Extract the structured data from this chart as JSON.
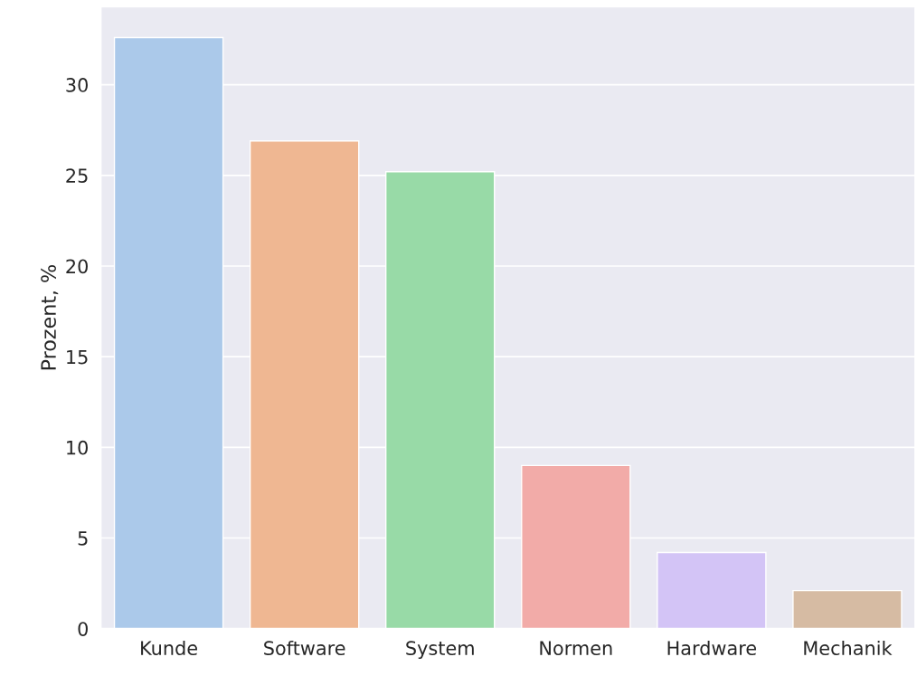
{
  "chart_data": {
    "type": "bar",
    "ylabel": "Prozent, %",
    "categories": [
      "Kunde",
      "Software",
      "System",
      "Normen",
      "Hardware",
      "Mechanik"
    ],
    "values": [
      32.6,
      26.9,
      25.2,
      9.0,
      4.2,
      2.1
    ],
    "colors": [
      "#a1c9f4",
      "#ffb482",
      "#8de5a1",
      "#ff9f9b",
      "#d0bbff",
      "#debb9b"
    ],
    "ylim": [
      0,
      34.3
    ],
    "yticks": [
      0,
      5,
      10,
      15,
      20,
      25,
      30
    ],
    "grid": "y"
  }
}
